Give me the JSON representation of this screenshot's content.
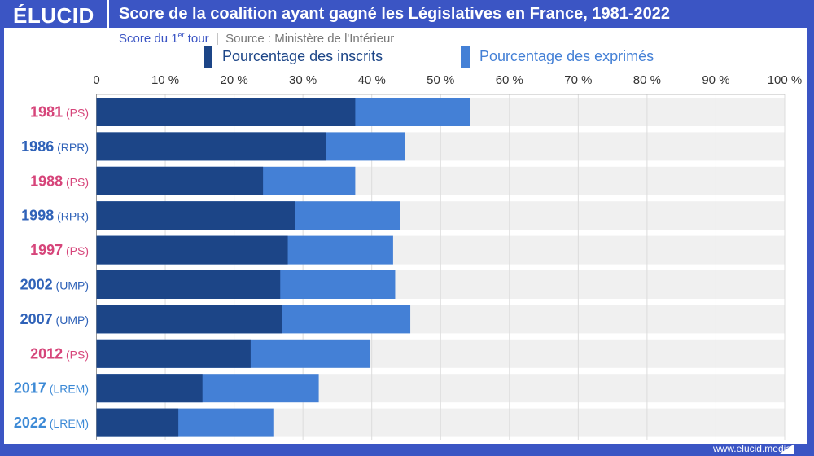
{
  "header": {
    "logo": "ÉLUCID",
    "title": "Score de la coalition ayant gagné les Législatives en France, 1981-2022"
  },
  "subtitle": {
    "part1": "Score du 1",
    "sup": "er",
    "part2": " tour",
    "separator": "|",
    "source": "Source : Ministère de l'Intérieur"
  },
  "footer": {
    "url": "www.elucid.media"
  },
  "colors": {
    "frame": "#3b55c4",
    "inscrits": "#1c4587",
    "exprimes": "#4480d6",
    "track": "#f0f0f0",
    "PS": "#d6457a",
    "RPR": "#2f62b8",
    "UMP": "#2f62b8",
    "LREM": "#3d8ad6"
  },
  "chart_data": {
    "type": "bar",
    "orientation": "horizontal",
    "title": "Score de la coalition ayant gagné les Législatives en France, 1981-2022",
    "xlim": [
      0,
      100
    ],
    "xticks": [
      "0",
      "10 %",
      "20 %",
      "30 %",
      "40 %",
      "50 %",
      "60 %",
      "70 %",
      "80 %",
      "90 %",
      "100 %"
    ],
    "legend_placement": "top",
    "categories": [
      {
        "year": "1981",
        "party": "(PS)"
      },
      {
        "year": "1986",
        "party": "(RPR)"
      },
      {
        "year": "1988",
        "party": "(PS)"
      },
      {
        "year": "1998",
        "party": "(RPR)"
      },
      {
        "year": "1997",
        "party": "(PS)"
      },
      {
        "year": "2002",
        "party": "(UMP)"
      },
      {
        "year": "2007",
        "party": "(UMP)"
      },
      {
        "year": "2012",
        "party": "(PS)"
      },
      {
        "year": "2017",
        "party": "(LREM)"
      },
      {
        "year": "2022",
        "party": "(LREM)"
      }
    ],
    "series": [
      {
        "name": "Pourcentage des inscrits",
        "values": [
          37.6,
          33.4,
          24.2,
          28.8,
          27.8,
          26.7,
          27.0,
          22.4,
          15.4,
          11.9
        ]
      },
      {
        "name": "Pourcentage des exprimés",
        "values": [
          54.3,
          44.8,
          37.6,
          44.1,
          43.1,
          43.4,
          45.6,
          39.8,
          32.3,
          25.7
        ]
      }
    ]
  }
}
